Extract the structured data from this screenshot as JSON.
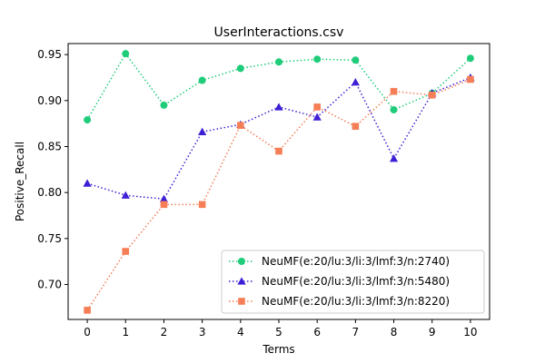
{
  "chart_data": {
    "type": "line",
    "title": "UserInteractions.csv",
    "xlabel": "Terms",
    "ylabel": "Positive_Recall",
    "x": [
      0,
      1,
      2,
      3,
      4,
      5,
      6,
      7,
      8,
      9,
      10
    ],
    "xlim": [
      -0.5,
      10.5
    ],
    "ylim": [
      0.662,
      0.962
    ],
    "yticks": [
      0.7,
      0.75,
      0.8,
      0.85,
      0.9,
      0.95
    ],
    "grid": false,
    "legend_position": "lower-right",
    "series": [
      {
        "name": "NeuMF(e:20/lu:3/li:3/lmf:3/n:2740)",
        "color": "#1ecc7a",
        "marker": "circle",
        "linestyle": "dotted",
        "values": [
          0.879,
          0.951,
          0.895,
          0.922,
          0.935,
          0.942,
          0.945,
          0.944,
          0.89,
          0.908,
          0.946
        ]
      },
      {
        "name": "NeuMF(e:20/lu:3/li:3/lmf:3/n:5480)",
        "color": "#3f1fd6",
        "marker": "triangle",
        "linestyle": "dotted",
        "values": [
          0.81,
          0.797,
          0.793,
          0.866,
          0.874,
          0.893,
          0.882,
          0.92,
          0.837,
          0.908,
          0.925
        ]
      },
      {
        "name": "NeuMF(e:20/lu:3/li:3/lmf:3/n:8220)",
        "color": "#f57e57",
        "marker": "square",
        "linestyle": "dotted",
        "values": [
          0.672,
          0.736,
          0.787,
          0.787,
          0.873,
          0.845,
          0.893,
          0.872,
          0.91,
          0.906,
          0.923
        ]
      }
    ]
  }
}
